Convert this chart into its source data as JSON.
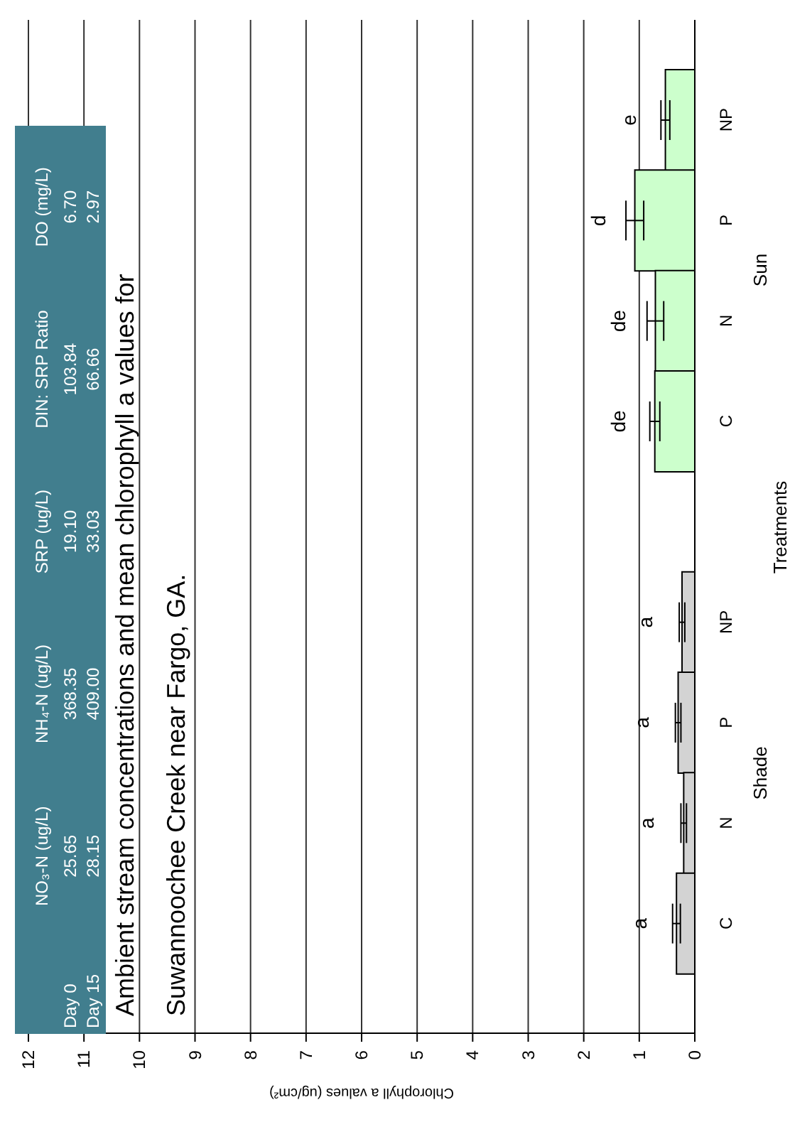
{
  "chart_data": [
    {
      "type": "bar",
      "orientation": "horizontal",
      "title": "Ambient stream concentrations and mean chlorophyll a values for Suwannoochee Creek near Fargo, GA.",
      "ylabel": "Treatments",
      "xlabel": "Chlorophyll a values (ug/cm²)",
      "categories": [
        "NP",
        "P",
        "N",
        "C",
        "NP",
        "P",
        "N",
        "C"
      ],
      "values": [
        0.53,
        1.08,
        0.71,
        0.72,
        0.23,
        0.3,
        0.2,
        0.33
      ],
      "errors": [
        0.08,
        0.16,
        0.15,
        0.09,
        0.05,
        0.05,
        0.05,
        0.07
      ],
      "colors": [
        "#ccffcc",
        "#ccffcc",
        "#ccffcc",
        "#ccffcc",
        "#d3d3d3",
        "#d3d3d3",
        "#d3d3d3",
        "#d3d3d3"
      ],
      "value_labels": [
        "e",
        "d",
        "de",
        "de",
        "a",
        "a",
        "a",
        "a"
      ],
      "annotations": [
        "Sun",
        "Shade"
      ],
      "xlim": [
        12,
        0
      ],
      "xticks": [
        0,
        1,
        2,
        3,
        4,
        5,
        6,
        7,
        8,
        9,
        10,
        11,
        12
      ],
      "grid": "x",
      "legend": false
    },
    {
      "type": "other",
      "categories": [
        "NO₃-N (ug/L)",
        "NH₄-N (ug/L)",
        "SRP (ug/L)",
        "DIN: SRP Ratio",
        "DO (mg/L)"
      ],
      "y_categories": [
        "Day 0",
        "Day 15"
      ],
      "cell_labels": [
        [
          "25.65",
          "368.35",
          "19.10",
          "103.84",
          "6.70"
        ],
        [
          "28.15",
          "409.00",
          "33.03",
          "66.66",
          "2.97"
        ]
      ]
    }
  ]
}
